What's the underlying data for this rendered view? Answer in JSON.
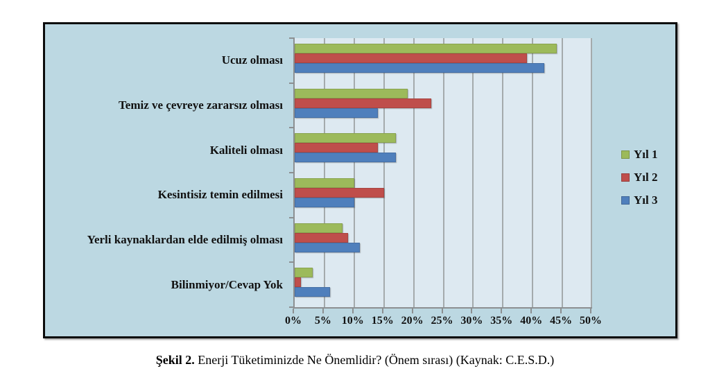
{
  "figure": {
    "caption_prefix": "Şekil 2.",
    "caption_text": "Enerji Tüketiminizde Ne Önemlidir? (Önem sırası) (Kaynak: C.E.S.D.)"
  },
  "chart_data": {
    "type": "bar",
    "orientation": "horizontal",
    "title": "",
    "xlabel": "",
    "ylabel": "",
    "categories": [
      "Ucuz olması",
      "Temiz ve çevreye zararsız olması",
      "Kaliteli olması",
      "Kesintisiz temin edilmesi",
      "Yerli kaynaklardan elde edilmiş olması",
      "Bilinmiyor/Cevap Yok"
    ],
    "series": [
      {
        "name": "Yıl 1",
        "color": "#9cba5b",
        "values": [
          44,
          19,
          17,
          10,
          8,
          3
        ]
      },
      {
        "name": "Yıl 2",
        "color": "#bf4e4b",
        "values": [
          39,
          23,
          14,
          15,
          9,
          1
        ]
      },
      {
        "name": "Yıl 3",
        "color": "#4f7fbc",
        "values": [
          42,
          14,
          17,
          10,
          11,
          6
        ]
      }
    ],
    "xlim": [
      0,
      50
    ],
    "x_tick_labels": [
      "0%",
      "5%",
      "10%",
      "15%",
      "20%",
      "25%",
      "30%",
      "35%",
      "40%",
      "45%",
      "50%"
    ],
    "grid": true,
    "legend_position": "right",
    "colors": {
      "chart_bg": "#bcd8e2",
      "plot_bg": "#dde9f1",
      "gridline": "#a4aaac",
      "axis": "#8c8f91",
      "frame_border": "#0b0b0b"
    }
  }
}
